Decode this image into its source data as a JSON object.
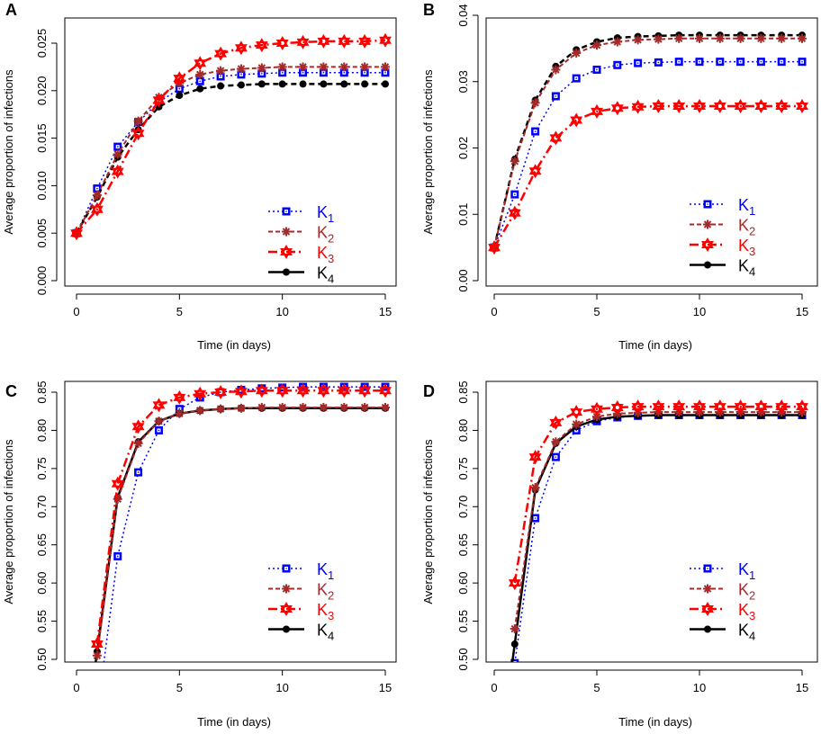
{
  "chart_data": [
    {
      "panel": "A",
      "type": "line",
      "xlabel": "Time (in days)",
      "ylabel": "Average proportion of infections",
      "xlim": [
        0,
        15
      ],
      "ylim": [
        0.0,
        0.025
      ],
      "x_ticks": [
        "0",
        "5",
        "10",
        "15"
      ],
      "y_ticks": [
        "0.000",
        "0.005",
        "0.010",
        "0.015",
        "0.020",
        "0.025"
      ],
      "legend": [
        "K1",
        "K2",
        "K3",
        "K4"
      ],
      "x": [
        0,
        1,
        2,
        3,
        4,
        5,
        6,
        7,
        8,
        9,
        10,
        11,
        12,
        13,
        14,
        15
      ],
      "series": [
        {
          "name": "K1",
          "color": "#0000FF",
          "values": [
            0.005,
            0.0097,
            0.0141,
            0.0167,
            0.0188,
            0.0202,
            0.021,
            0.0215,
            0.0217,
            0.0218,
            0.0219,
            0.0219,
            0.0219,
            0.0219,
            0.0219,
            0.0219
          ]
        },
        {
          "name": "K2",
          "color": "#A52A2A",
          "values": [
            0.005,
            0.009,
            0.0133,
            0.0168,
            0.0193,
            0.0208,
            0.0217,
            0.0221,
            0.0223,
            0.0224,
            0.0225,
            0.0225,
            0.0225,
            0.0225,
            0.0225,
            0.0225
          ]
        },
        {
          "name": "K3",
          "color": "#FF0000",
          "values": [
            0.005,
            0.0075,
            0.0115,
            0.0155,
            0.019,
            0.0213,
            0.0229,
            0.0239,
            0.0245,
            0.0248,
            0.025,
            0.0251,
            0.0252,
            0.0252,
            0.0252,
            0.0253
          ]
        },
        {
          "name": "K4",
          "color": "#000000",
          "values": [
            0.005,
            0.0088,
            0.013,
            0.0159,
            0.0183,
            0.0195,
            0.0202,
            0.0205,
            0.0206,
            0.0207,
            0.0207,
            0.0207,
            0.0207,
            0.0207,
            0.0207,
            0.0207
          ]
        }
      ]
    },
    {
      "panel": "B",
      "type": "line",
      "xlabel": "Time (in days)",
      "ylabel": "Average proportion of infections",
      "xlim": [
        0,
        15
      ],
      "ylim": [
        0.0,
        0.04
      ],
      "x_ticks": [
        "0",
        "5",
        "10",
        "15"
      ],
      "y_ticks": [
        "0.00",
        "0.01",
        "0.02",
        "0.03",
        "0.04"
      ],
      "legend": [
        "K1",
        "K2",
        "K3",
        "K4"
      ],
      "x": [
        0,
        1,
        2,
        3,
        4,
        5,
        6,
        7,
        8,
        9,
        10,
        11,
        12,
        13,
        14,
        15
      ],
      "series": [
        {
          "name": "K1",
          "color": "#0000FF",
          "values": [
            0.005,
            0.013,
            0.0225,
            0.0278,
            0.0305,
            0.0318,
            0.0325,
            0.0328,
            0.0329,
            0.033,
            0.033,
            0.033,
            0.033,
            0.033,
            0.033,
            0.033
          ]
        },
        {
          "name": "K2",
          "color": "#A52A2A",
          "values": [
            0.005,
            0.018,
            0.0268,
            0.0318,
            0.0343,
            0.0355,
            0.036,
            0.0363,
            0.0364,
            0.0365,
            0.0365,
            0.0365,
            0.0365,
            0.0365,
            0.0365,
            0.0365
          ]
        },
        {
          "name": "K3",
          "color": "#FF0000",
          "values": [
            0.005,
            0.0102,
            0.0165,
            0.0215,
            0.0242,
            0.0255,
            0.026,
            0.0262,
            0.0263,
            0.0263,
            0.0263,
            0.0263,
            0.0263,
            0.0263,
            0.0263,
            0.0263
          ]
        },
        {
          "name": "K4",
          "color": "#000000",
          "values": [
            0.005,
            0.0183,
            0.0272,
            0.0323,
            0.0348,
            0.036,
            0.0366,
            0.0368,
            0.0369,
            0.037,
            0.037,
            0.037,
            0.037,
            0.037,
            0.037,
            0.037
          ]
        }
      ]
    },
    {
      "panel": "C",
      "type": "line",
      "xlabel": "Time (in days)",
      "ylabel": "Average proportion of infections",
      "xlim": [
        0,
        15
      ],
      "ylim": [
        0.5,
        0.85
      ],
      "x_ticks": [
        "0",
        "5",
        "10",
        "15"
      ],
      "y_ticks": [
        "0.50",
        "0.55",
        "0.60",
        "0.65",
        "0.70",
        "0.75",
        "0.80",
        "0.85"
      ],
      "legend": [
        "K1",
        "K2",
        "K3",
        "K4"
      ],
      "x": [
        1,
        2,
        3,
        4,
        5,
        6,
        7,
        8,
        9,
        10,
        11,
        12,
        13,
        14,
        15
      ],
      "series": [
        {
          "name": "K1",
          "color": "#0000FF",
          "line_start": [
            1.3,
            0.49
          ],
          "values": [
            null,
            0.635,
            0.745,
            0.8,
            0.828,
            0.843,
            0.85,
            0.853,
            0.855,
            0.856,
            0.857,
            0.857,
            0.857,
            0.857,
            0.857
          ]
        },
        {
          "name": "K2",
          "color": "#A52A2A",
          "values": [
            0.505,
            0.71,
            0.783,
            0.812,
            0.822,
            0.826,
            0.828,
            0.829,
            0.83,
            0.83,
            0.83,
            0.83,
            0.83,
            0.83,
            0.83
          ]
        },
        {
          "name": "K3",
          "color": "#FF0000",
          "values": [
            0.52,
            0.73,
            0.805,
            0.833,
            0.843,
            0.848,
            0.85,
            0.851,
            0.852,
            0.852,
            0.852,
            0.852,
            0.852,
            0.852,
            0.852
          ]
        },
        {
          "name": "K4",
          "color": "#000000",
          "line_start": [
            0.9,
            0.49
          ],
          "values": [
            0.51,
            0.712,
            0.785,
            0.812,
            0.822,
            0.826,
            0.828,
            0.829,
            0.829,
            0.829,
            0.829,
            0.829,
            0.829,
            0.829,
            0.829
          ]
        }
      ]
    },
    {
      "panel": "D",
      "type": "line",
      "xlabel": "Time (in days)",
      "ylabel": "Average proportion of infections",
      "xlim": [
        0,
        15
      ],
      "ylim": [
        0.5,
        0.85
      ],
      "x_ticks": [
        "0",
        "5",
        "10",
        "15"
      ],
      "y_ticks": [
        "0.50",
        "0.55",
        "0.60",
        "0.65",
        "0.70",
        "0.75",
        "0.80",
        "0.85"
      ],
      "legend": [
        "K1",
        "K2",
        "K3",
        "K4"
      ],
      "x": [
        1,
        2,
        3,
        4,
        5,
        6,
        7,
        8,
        9,
        10,
        11,
        12,
        13,
        14,
        15
      ],
      "series": [
        {
          "name": "K1",
          "color": "#0000FF",
          "line_start": [
            1.05,
            0.49
          ],
          "values": [
            0.495,
            0.685,
            0.765,
            0.8,
            0.812,
            0.817,
            0.819,
            0.82,
            0.82,
            0.82,
            0.82,
            0.82,
            0.82,
            0.82,
            0.82
          ]
        },
        {
          "name": "K2",
          "color": "#A52A2A",
          "values": [
            0.54,
            0.725,
            0.785,
            0.808,
            0.818,
            0.822,
            0.823,
            0.824,
            0.824,
            0.824,
            0.824,
            0.824,
            0.824,
            0.824,
            0.824
          ]
        },
        {
          "name": "K3",
          "color": "#FF0000",
          "values": [
            0.6,
            0.765,
            0.81,
            0.824,
            0.828,
            0.83,
            0.831,
            0.831,
            0.831,
            0.831,
            0.831,
            0.831,
            0.831,
            0.831,
            0.831
          ]
        },
        {
          "name": "K4",
          "color": "#000000",
          "line_start": [
            0.85,
            0.49
          ],
          "values": [
            0.52,
            0.722,
            0.783,
            0.805,
            0.814,
            0.818,
            0.819,
            0.82,
            0.82,
            0.82,
            0.82,
            0.82,
            0.82,
            0.82,
            0.82
          ]
        }
      ]
    }
  ]
}
